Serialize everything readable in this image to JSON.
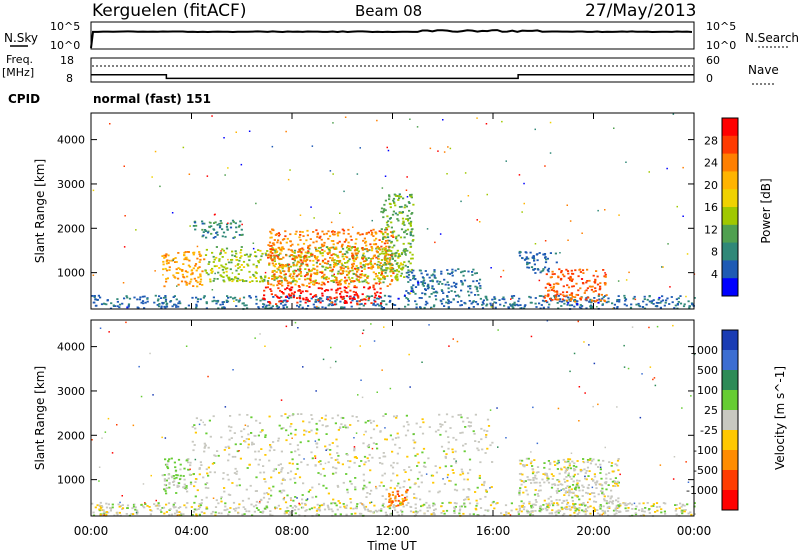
{
  "header": {
    "station": "Kerguelen (fitACF)",
    "beam": "Beam 08",
    "date": "27/May/2013"
  },
  "nsky_panel": {
    "left_label": "N.Sky",
    "right_label": "N.Search",
    "left_ticks": [
      "10^5",
      "10^0"
    ],
    "right_ticks": [
      "10^5",
      "10^0"
    ]
  },
  "freq_panel": {
    "left_label_1": "Freq.",
    "left_label_2": "[MHz]",
    "right_label": "Nave",
    "left_ticks": [
      "18",
      "8"
    ],
    "right_ticks": [
      "60",
      "0"
    ]
  },
  "cpid_panel": {
    "label": "CPID",
    "value": "normal (fast) 151"
  },
  "power_panel": {
    "ylabel": "Slant Range [km]",
    "colorbar_label": "Power [dB]",
    "yticks": [
      "4000",
      "3000",
      "2000",
      "1000"
    ],
    "cbar_ticks": [
      "28",
      "24",
      "20",
      "16",
      "12",
      "8",
      "4"
    ],
    "cbar_colors": [
      "#ff0000",
      "#ff3a00",
      "#ff7f00",
      "#ffb400",
      "#f0d200",
      "#a0c800",
      "#50a050",
      "#308878",
      "#1e5ab4",
      "#0000ff"
    ]
  },
  "velocity_panel": {
    "ylabel": "Slant Range [km]",
    "colorbar_label": "Velocity [m s^-1]",
    "yticks": [
      "4000",
      "3000",
      "2000",
      "1000"
    ],
    "cbar_ticks": [
      "1000",
      "500",
      "100",
      "25",
      "-25",
      "-100",
      "-500",
      "-1000"
    ],
    "cbar_colors": [
      "#1a3cb4",
      "#3c6ed2",
      "#2e8b57",
      "#66cc33",
      "#c8c8c0",
      "#ffc800",
      "#ff8c00",
      "#ff3c00",
      "#ff0000"
    ]
  },
  "x_axis": {
    "label": "Time UT",
    "ticks": [
      "00:00",
      "04:00",
      "08:00",
      "12:00",
      "16:00",
      "20:00",
      "00:00"
    ]
  },
  "chart_data": {
    "type": "heatmap",
    "title": "Kerguelen (fitACF)   Beam 08   27/May/2013",
    "xlabel": "Time UT",
    "ylabel": "Slant Range [km]",
    "x_range_hours": [
      0,
      24
    ],
    "y_range_km": [
      180,
      4600
    ],
    "panels": [
      {
        "name": "Power [dB]",
        "scale": [
          0,
          32
        ],
        "regions": [
          {
            "t_start": 0.0,
            "t_end": 24.0,
            "range_km": [
              200,
              500
            ],
            "value": 6,
            "desc": "near-range scatter"
          },
          {
            "t_start": 2.8,
            "t_end": 4.5,
            "range_km": [
              700,
              1500
            ],
            "value": 22
          },
          {
            "t_start": 4.5,
            "t_end": 12.5,
            "range_km": [
              800,
              1600
            ],
            "value": 14
          },
          {
            "t_start": 4.0,
            "t_end": 6.0,
            "range_km": [
              1800,
              2200
            ],
            "value": 8
          },
          {
            "t_start": 6.8,
            "t_end": 11.5,
            "range_km": [
              300,
              700
            ],
            "value": 30
          },
          {
            "t_start": 7.0,
            "t_end": 12.0,
            "range_km": [
              700,
              2000
            ],
            "value": 24
          },
          {
            "t_start": 11.5,
            "t_end": 12.8,
            "range_km": [
              1000,
              2800
            ],
            "value": 12
          },
          {
            "t_start": 12.5,
            "t_end": 15.5,
            "range_km": [
              500,
              1100
            ],
            "value": 6
          },
          {
            "t_start": 17.0,
            "t_end": 18.5,
            "range_km": [
              1000,
              1500
            ],
            "value": 6
          },
          {
            "t_start": 18.0,
            "t_end": 20.5,
            "range_km": [
              350,
              1100
            ],
            "value": 26
          }
        ]
      },
      {
        "name": "Velocity [m s^-1]",
        "scale": [
          -1000,
          1000
        ],
        "regions": [
          {
            "t_start": 0.0,
            "t_end": 24.0,
            "range_km": [
              200,
              500
            ],
            "value": 0
          },
          {
            "t_start": 2.8,
            "t_end": 4.0,
            "range_km": [
              700,
              1500
            ],
            "value": 100
          },
          {
            "t_start": 4.0,
            "t_end": 16.0,
            "range_km": [
              500,
              2500
            ],
            "value": 0
          },
          {
            "t_start": 11.8,
            "t_end": 12.6,
            "range_km": [
              400,
              800
            ],
            "value": -500
          },
          {
            "t_start": 17.0,
            "t_end": 21.0,
            "range_km": [
              300,
              1500
            ],
            "value": 0
          }
        ]
      }
    ],
    "frequency_mhz": [
      {
        "t_start": 0,
        "t_end": 3,
        "value": 11
      },
      {
        "t_start": 3,
        "t_end": 17,
        "value": 9.5
      },
      {
        "t_start": 17,
        "t_end": 24,
        "value": 11
      }
    ],
    "cpid": "normal (fast) 151"
  }
}
